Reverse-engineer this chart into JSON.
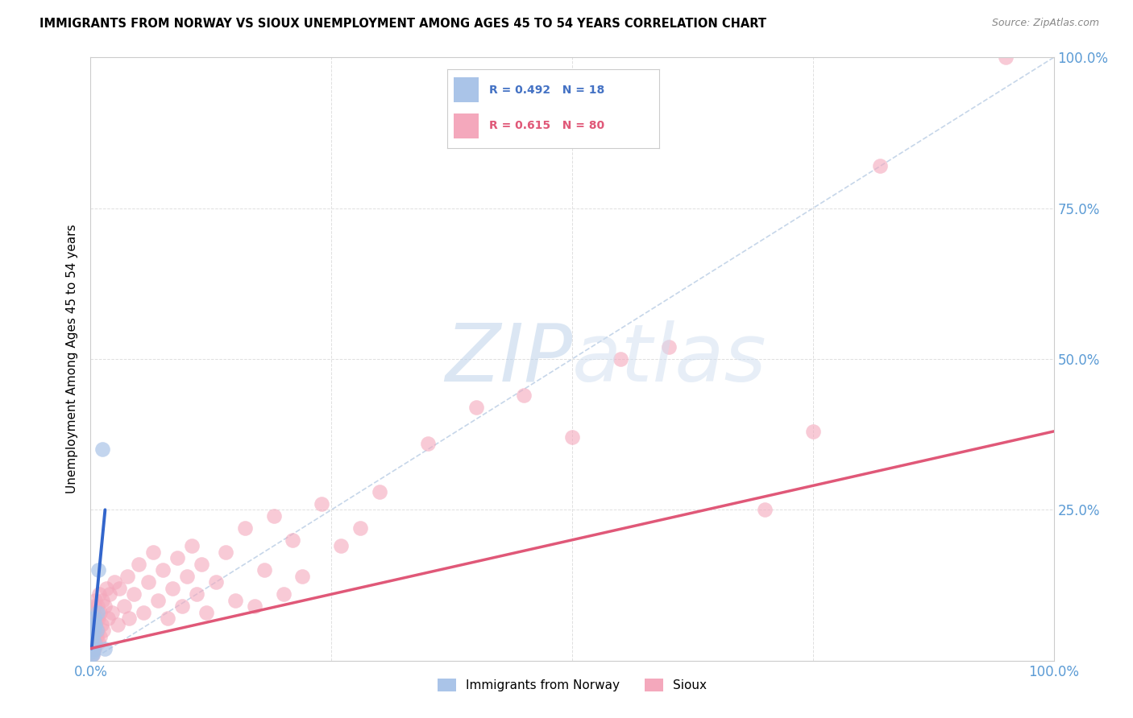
{
  "title": "IMMIGRANTS FROM NORWAY VS SIOUX UNEMPLOYMENT AMONG AGES 45 TO 54 YEARS CORRELATION CHART",
  "source": "Source: ZipAtlas.com",
  "ylabel": "Unemployment Among Ages 45 to 54 years",
  "xlim": [
    0,
    1.0
  ],
  "ylim": [
    0,
    1.0
  ],
  "norway_R": 0.492,
  "norway_N": 18,
  "sioux_R": 0.615,
  "sioux_N": 80,
  "norway_color": "#aac4e8",
  "sioux_color": "#f4a8bc",
  "norway_line_color": "#3366cc",
  "sioux_line_color": "#e05878",
  "diagonal_color": "#b8cce4",
  "watermark_zip": "ZIP",
  "watermark_atlas": "atlas",
  "norway_x": [
    0.001,
    0.001,
    0.001,
    0.002,
    0.002,
    0.002,
    0.002,
    0.003,
    0.003,
    0.003,
    0.004,
    0.004,
    0.005,
    0.006,
    0.007,
    0.008,
    0.012,
    0.015
  ],
  "norway_y": [
    0.01,
    0.02,
    0.03,
    0.01,
    0.015,
    0.02,
    0.04,
    0.02,
    0.05,
    0.06,
    0.03,
    0.07,
    0.06,
    0.05,
    0.08,
    0.15,
    0.35,
    0.02
  ],
  "sioux_x": [
    0.001,
    0.001,
    0.001,
    0.002,
    0.002,
    0.002,
    0.002,
    0.003,
    0.003,
    0.003,
    0.003,
    0.004,
    0.004,
    0.004,
    0.005,
    0.005,
    0.005,
    0.006,
    0.006,
    0.007,
    0.007,
    0.008,
    0.008,
    0.009,
    0.01,
    0.01,
    0.011,
    0.012,
    0.013,
    0.015,
    0.016,
    0.018,
    0.02,
    0.022,
    0.025,
    0.028,
    0.03,
    0.035,
    0.038,
    0.04,
    0.045,
    0.05,
    0.055,
    0.06,
    0.065,
    0.07,
    0.075,
    0.08,
    0.085,
    0.09,
    0.095,
    0.1,
    0.105,
    0.11,
    0.115,
    0.12,
    0.13,
    0.14,
    0.15,
    0.16,
    0.17,
    0.18,
    0.19,
    0.2,
    0.21,
    0.22,
    0.24,
    0.26,
    0.28,
    0.3,
    0.35,
    0.4,
    0.45,
    0.5,
    0.55,
    0.6,
    0.7,
    0.75,
    0.82,
    0.95
  ],
  "sioux_y": [
    0.02,
    0.04,
    0.06,
    0.01,
    0.03,
    0.05,
    0.07,
    0.02,
    0.04,
    0.06,
    0.08,
    0.02,
    0.05,
    0.09,
    0.03,
    0.06,
    0.1,
    0.04,
    0.07,
    0.05,
    0.09,
    0.03,
    0.07,
    0.11,
    0.04,
    0.08,
    0.06,
    0.1,
    0.05,
    0.09,
    0.12,
    0.07,
    0.11,
    0.08,
    0.13,
    0.06,
    0.12,
    0.09,
    0.14,
    0.07,
    0.11,
    0.16,
    0.08,
    0.13,
    0.18,
    0.1,
    0.15,
    0.07,
    0.12,
    0.17,
    0.09,
    0.14,
    0.19,
    0.11,
    0.16,
    0.08,
    0.13,
    0.18,
    0.1,
    0.22,
    0.09,
    0.15,
    0.24,
    0.11,
    0.2,
    0.14,
    0.26,
    0.19,
    0.22,
    0.28,
    0.36,
    0.42,
    0.44,
    0.37,
    0.5,
    0.52,
    0.25,
    0.38,
    0.82,
    1.0
  ],
  "sioux_line_x": [
    0.0,
    1.0
  ],
  "sioux_line_y": [
    0.02,
    0.38
  ],
  "norway_line_x": [
    0.001,
    0.015
  ],
  "norway_line_y": [
    0.02,
    0.25
  ]
}
